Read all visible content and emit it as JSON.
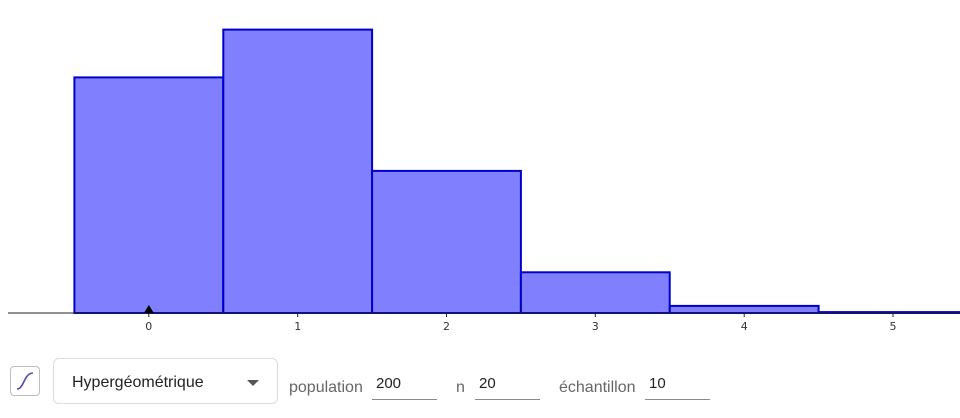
{
  "chart_data": {
    "type": "bar",
    "categories": [
      "0",
      "1",
      "2",
      "3",
      "4",
      "5"
    ],
    "x": [
      0,
      1,
      2,
      3,
      4,
      5
    ],
    "values": [
      0.33,
      0.397,
      0.199,
      0.057,
      0.01,
      0.0012
    ],
    "xlim": [
      -1.0,
      5.45
    ],
    "ylim": [
      0,
      0.43
    ],
    "grid": false,
    "legend": "none",
    "marker_at": 0,
    "colors": {
      "fill": "#8080ff",
      "stroke": "#0000cc",
      "axis": "#222222",
      "marker": "#000000"
    }
  },
  "controls": {
    "distribution_label": "Hypergéométrique",
    "cdf_icon": "cumulative-curve-icon",
    "params": [
      {
        "label": "population",
        "value": "200"
      },
      {
        "label": "n",
        "value": "20"
      },
      {
        "label": "échantillon",
        "value": "10"
      }
    ]
  }
}
